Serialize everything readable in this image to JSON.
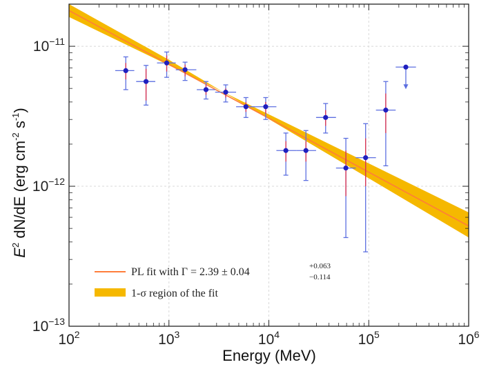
{
  "chart_data": {
    "type": "scatter",
    "xscale": "log",
    "yscale": "log",
    "xlim": [
      100,
      1000000
    ],
    "ylim": [
      1e-13,
      2e-11
    ],
    "grid": true,
    "xlabel": "Energy (MeV)",
    "ylabel_parts": {
      "prefix": "E",
      "sup1": "2",
      "mid": " dN/dE (erg cm",
      "sup2": "-2",
      "mid2": " s",
      "sup3": "-1",
      "suffix": ")"
    },
    "x_ticks": [
      {
        "base": "10",
        "exp": "2",
        "value": 100
      },
      {
        "base": "10",
        "exp": "3",
        "value": 1000
      },
      {
        "base": "10",
        "exp": "4",
        "value": 10000
      },
      {
        "base": "10",
        "exp": "5",
        "value": 100000
      },
      {
        "base": "10",
        "exp": "6",
        "value": 1000000
      }
    ],
    "y_ticks": [
      {
        "base": "10",
        "exp": "−13",
        "value": 1e-13
      },
      {
        "base": "10",
        "exp": "−12",
        "value": 1e-12
      },
      {
        "base": "10",
        "exp": "−11",
        "value": 1e-11
      }
    ],
    "fit": {
      "legend_line": "PL fit with Γ = 2.39 ± 0.04",
      "legend_line_sup": "+0.063",
      "legend_line_sub": "−0.114",
      "legend_band": "1-σ region of the fit",
      "line": [
        [
          100,
          1.8e-11
        ],
        [
          1000000,
          5.2e-13
        ]
      ],
      "band_upper": [
        [
          100,
          2e-11
        ],
        [
          1000,
          8e-12
        ],
        [
          1000000,
          4.3e-13
        ]
      ],
      "band_lower": [
        [
          100,
          1.62e-11
        ],
        [
          1000,
          7.3e-12
        ],
        [
          1000000,
          6.5e-13
        ]
      ],
      "band_color": "#f5b800",
      "line_color": "#ff7d3a"
    },
    "points": [
      {
        "x": 370,
        "xlo": 290,
        "xhi": 450,
        "y": 6.7e-12,
        "ylo": 4.9e-12,
        "yhi": 8.4e-12,
        "sys_lo": 5.8e-12,
        "sys_hi": 7.6e-12
      },
      {
        "x": 590,
        "xlo": 470,
        "xhi": 730,
        "y": 5.6e-12,
        "ylo": 3.8e-12,
        "yhi": 7.3e-12,
        "sys_lo": 4.1e-12,
        "sys_hi": 6.9e-12
      },
      {
        "x": 950,
        "xlo": 760,
        "xhi": 1170,
        "y": 7.6e-12,
        "ylo": 6e-12,
        "yhi": 9.1e-12,
        "sys_lo": 6.6e-12,
        "sys_hi": 8.6e-12
      },
      {
        "x": 1450,
        "xlo": 1170,
        "xhi": 1880,
        "y": 6.8e-12,
        "ylo": 5.7e-12,
        "yhi": 7.7e-12,
        "sys_lo": 6.1e-12,
        "sys_hi": 7.4e-12
      },
      {
        "x": 2350,
        "xlo": 1900,
        "xhi": 2900,
        "y": 4.9e-12,
        "ylo": 4.2e-12,
        "yhi": 5.6e-12,
        "sys_lo": 4.5e-12,
        "sys_hi": 5.3e-12
      },
      {
        "x": 3700,
        "xlo": 2900,
        "xhi": 4700,
        "y": 4.7e-12,
        "ylo": 4e-12,
        "yhi": 5.3e-12,
        "sys_lo": 4.3e-12,
        "sys_hi": 5e-12
      },
      {
        "x": 5900,
        "xlo": 4700,
        "xhi": 7400,
        "y": 3.7e-12,
        "ylo": 3.1e-12,
        "yhi": 4.3e-12,
        "sys_lo": 3.4e-12,
        "sys_hi": 4e-12
      },
      {
        "x": 9300,
        "xlo": 7400,
        "xhi": 11900,
        "y": 3.7e-12,
        "ylo": 3e-12,
        "yhi": 4.3e-12,
        "sys_lo": 3.3e-12,
        "sys_hi": 4e-12
      },
      {
        "x": 14800,
        "xlo": 11900,
        "xhi": 18800,
        "y": 1.8e-12,
        "ylo": 1.2e-12,
        "yhi": 2.4e-12,
        "sys_lo": 1.5e-12,
        "sys_hi": 2.1e-12
      },
      {
        "x": 23500,
        "xlo": 18800,
        "xhi": 29700,
        "y": 1.8e-12,
        "ylo": 1.1e-12,
        "yhi": 2.5e-12,
        "sys_lo": 1.5e-12,
        "sys_hi": 2.1e-12
      },
      {
        "x": 37000,
        "xlo": 29700,
        "xhi": 47000,
        "y": 3.1e-12,
        "ylo": 2.4e-12,
        "yhi": 3.9e-12,
        "sys_lo": 2.7e-12,
        "sys_hi": 3.5e-12
      },
      {
        "x": 59000,
        "xlo": 47000,
        "xhi": 74000,
        "y": 1.35e-12,
        "ylo": 4.3e-13,
        "yhi": 2.2e-12,
        "sys_lo": 8.5e-13,
        "sys_hi": 1.8e-12
      },
      {
        "x": 93000,
        "xlo": 74000,
        "xhi": 118000,
        "y": 1.6e-12,
        "ylo": 3.4e-13,
        "yhi": 2.8e-12,
        "sys_lo": 1e-12,
        "sys_hi": 2.2e-12
      },
      {
        "x": 148000,
        "xlo": 118000,
        "xhi": 186000,
        "y": 3.5e-12,
        "ylo": 1.4e-12,
        "yhi": 5.6e-12,
        "sys_lo": 2.4e-12,
        "sys_hi": 4.6e-12
      },
      {
        "x": 235000,
        "xlo": 186000,
        "xhi": 297000,
        "y": 7.1e-12,
        "upper_limit": true,
        "arrow_to": 5e-12
      }
    ],
    "point_color": "#1f1fbf",
    "stat_error_color": "#5b6ee0",
    "sys_error_color": "#e0314a"
  }
}
